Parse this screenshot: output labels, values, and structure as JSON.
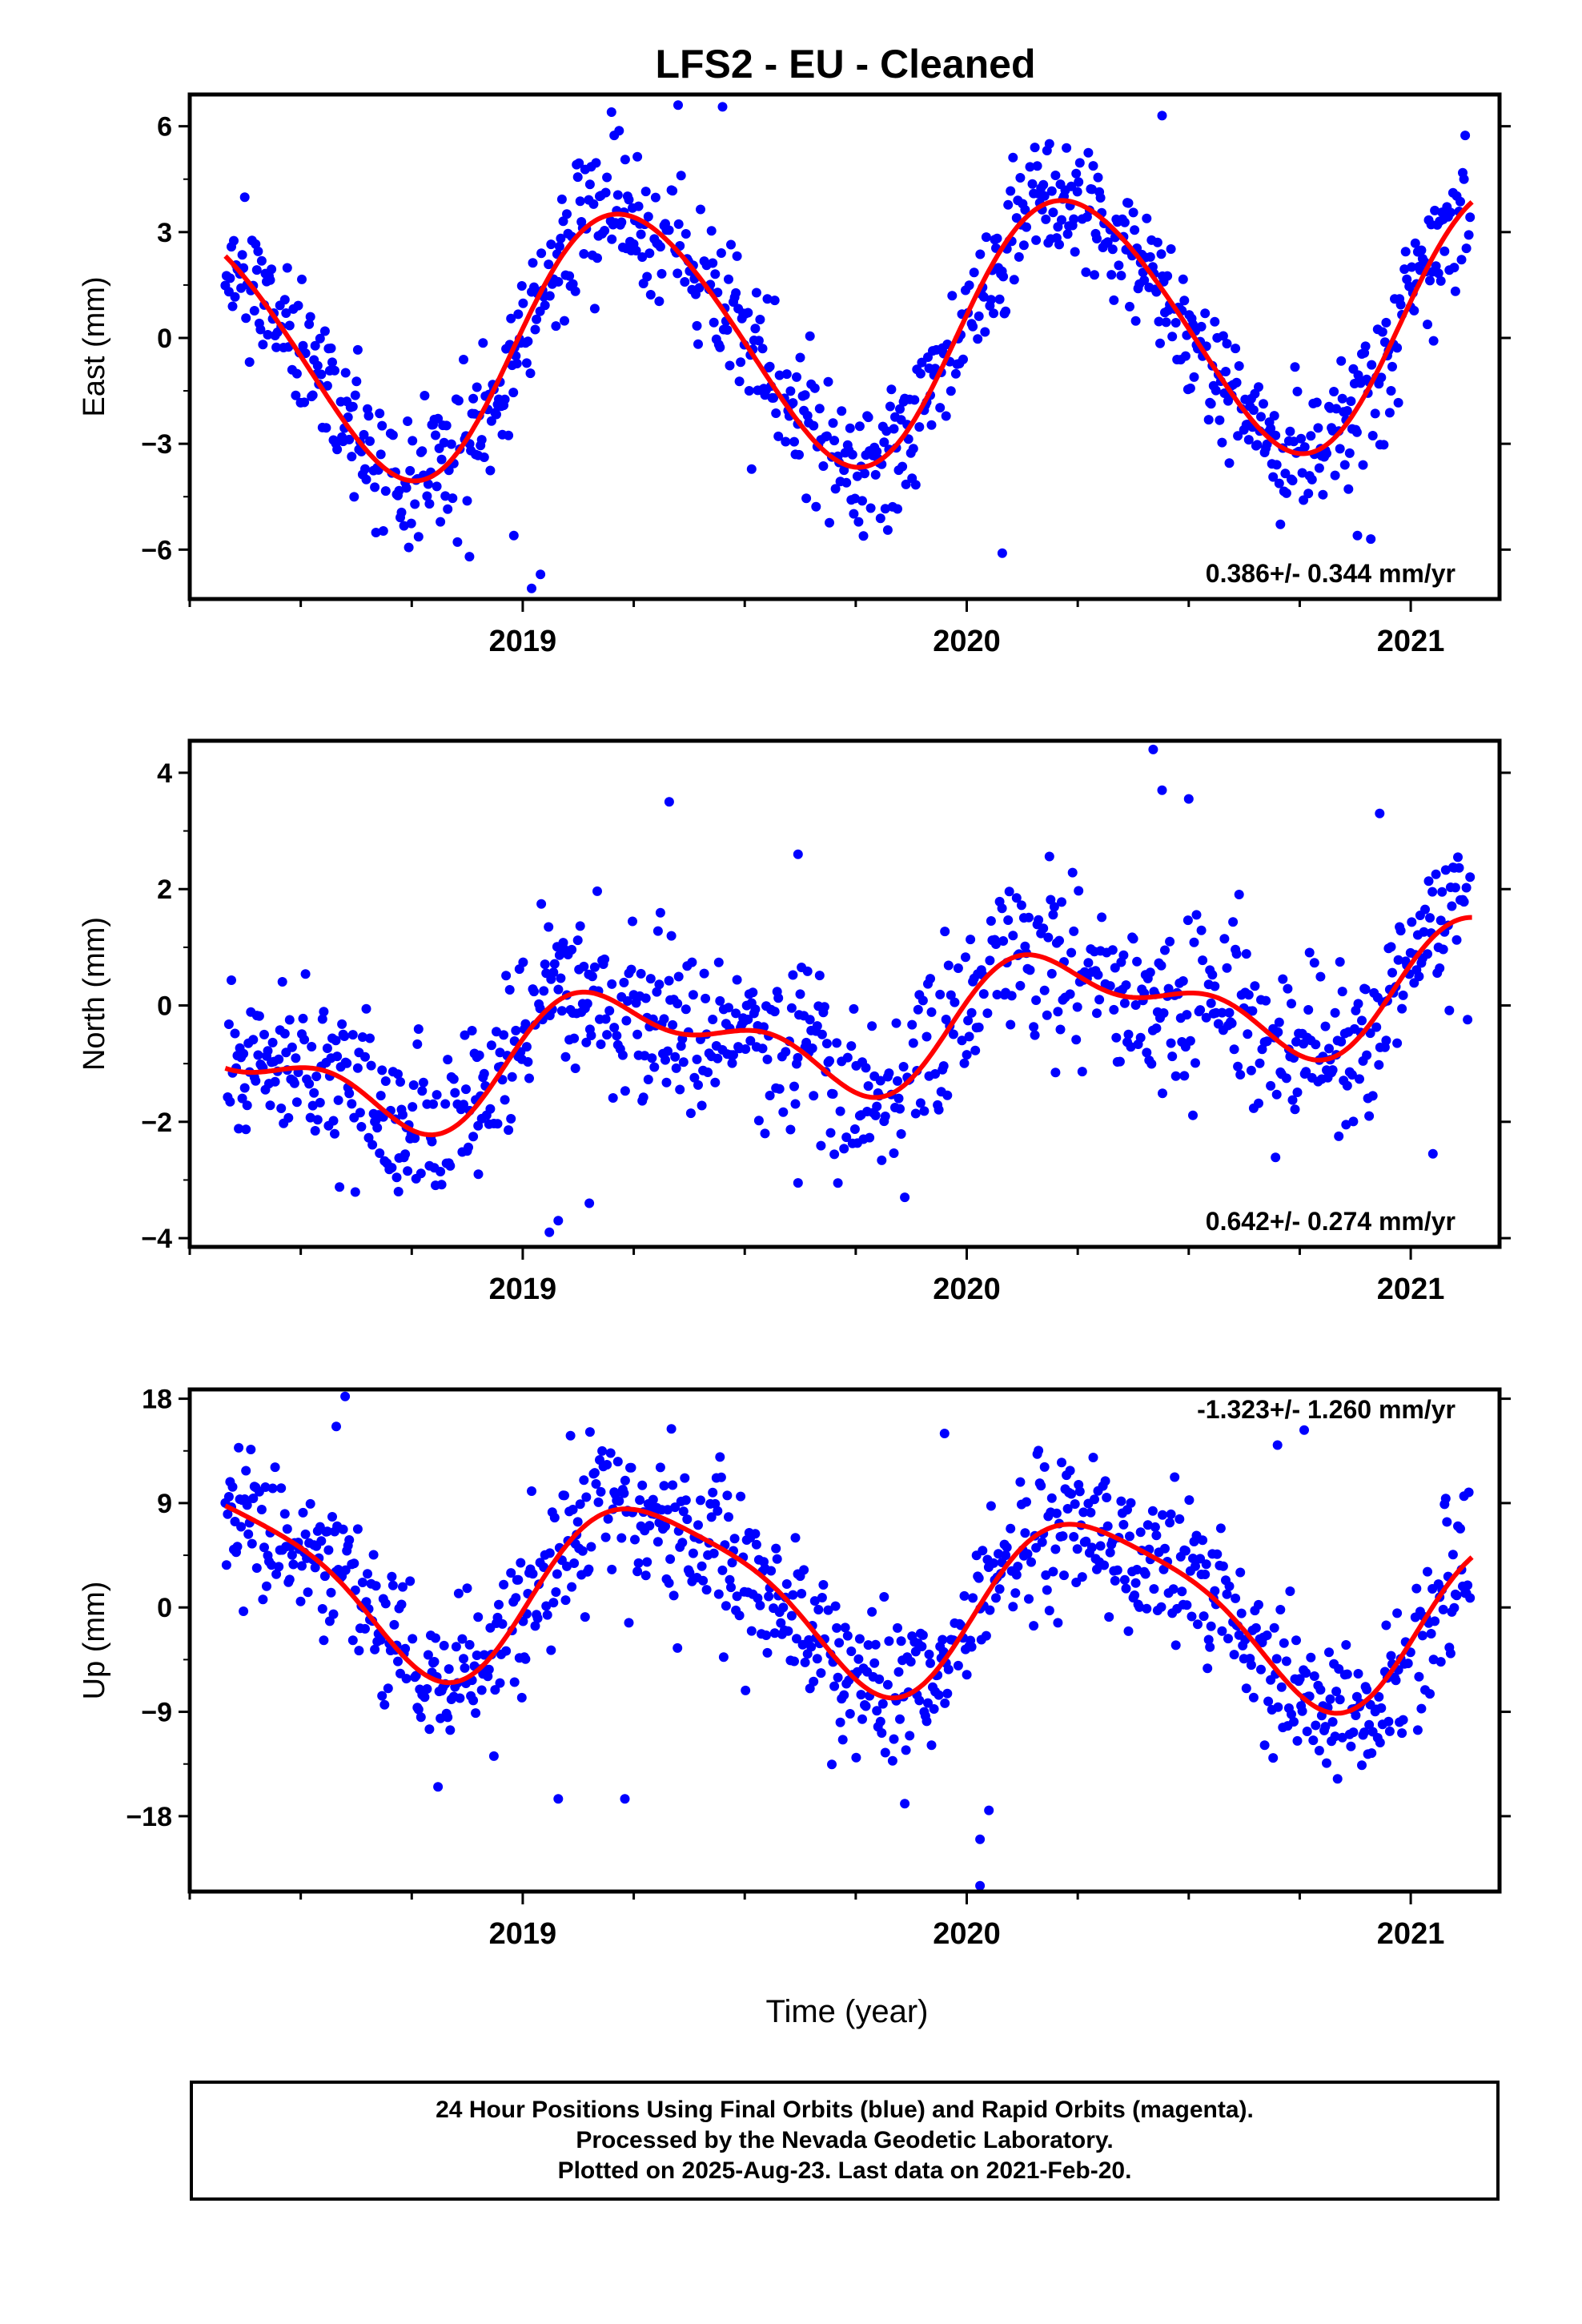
{
  "chart_data": {
    "type": "scatter",
    "title": "LFS2  - EU - Cleaned",
    "xlabel": "Time (year)",
    "xlim": [
      2018.25,
      2021.2
    ],
    "x_ticks": [
      2019,
      2020,
      2021
    ],
    "x_tick_labels": [
      "2019",
      "2020",
      "2021"
    ],
    "point_color": "#0000ff",
    "fit_color": "#ff0000",
    "panels": [
      {
        "name": "east",
        "ylabel": "East (mm)",
        "ylim": [
          -7.4,
          6.9
        ],
        "y_ticks": [
          6,
          3,
          0,
          -3,
          -6
        ],
        "y_tick_labels": [
          "6",
          "3",
          "0",
          "−3",
          "−6"
        ],
        "rate_label": "0.386+/- 0.344 mm/yr",
        "model": {
          "offset": 0.1,
          "rate": 0.386,
          "a1": 3.65,
          "p1": 0.08,
          "a2": 0.3,
          "p2": 0.5
        },
        "scatter_sd": 0.95,
        "seed": 11,
        "outliers": [
          [
            2019.02,
            -7.1
          ],
          [
            2019.04,
            -6.7
          ],
          [
            2018.98,
            -5.6
          ],
          [
            2019.2,
            6.4
          ],
          [
            2019.35,
            6.6
          ],
          [
            2019.45,
            6.55
          ],
          [
            2020.44,
            6.3
          ],
          [
            2020.88,
            -5.6
          ],
          [
            2020.91,
            -5.7
          ],
          [
            2020.08,
            -6.1
          ],
          [
            2018.88,
            -6.2
          ]
        ]
      },
      {
        "name": "north",
        "ylabel": "North (mm)",
        "ylim": [
          -4.15,
          4.55
        ],
        "y_ticks": [
          4,
          2,
          0,
          -2,
          -4
        ],
        "y_tick_labels": [
          "4",
          "2",
          "0",
          "−2",
          "−4"
        ],
        "rate_label": "0.642+/- 0.274 mm/yr",
        "model": {
          "offset": -0.45,
          "rate": 0.642,
          "a1": 0.85,
          "p1": 0.1,
          "a2": 0.45,
          "p2": 0.55
        },
        "scatter_sd": 0.7,
        "seed": 23,
        "outliers": [
          [
            2019.06,
            -3.9
          ],
          [
            2019.08,
            -3.7
          ],
          [
            2019.15,
            -3.4
          ],
          [
            2018.9,
            -2.9
          ],
          [
            2019.33,
            3.5
          ],
          [
            2019.62,
            2.6
          ],
          [
            2020.42,
            4.4
          ],
          [
            2020.44,
            3.7
          ],
          [
            2020.5,
            3.55
          ],
          [
            2020.93,
            3.3
          ],
          [
            2019.62,
            -3.05
          ],
          [
            2018.72,
            -3.2
          ],
          [
            2021.05,
            -2.55
          ]
        ]
      },
      {
        "name": "up",
        "ylabel": "Up (mm)",
        "ylim": [
          -24.5,
          18.8
        ],
        "y_ticks": [
          18,
          9,
          0,
          -9,
          -18
        ],
        "y_tick_labels": [
          "18",
          "9",
          "0",
          "−9",
          "−18"
        ],
        "rate_label": "-1.323+/- 1.260 mm/yr",
        "model": {
          "offset": 1.0,
          "rate": -1.323,
          "a1": 7.4,
          "p1": -0.33,
          "a2": 1.5,
          "p2": 0.1
        },
        "scatter_sd": 3.3,
        "seed": 37,
        "outliers": [
          [
            2018.6,
            18.2
          ],
          [
            2018.58,
            15.6
          ],
          [
            2020.03,
            -24.0
          ],
          [
            2020.03,
            -20.0
          ],
          [
            2020.05,
            -17.5
          ],
          [
            2020.76,
            15.3
          ],
          [
            2019.95,
            15.0
          ],
          [
            2019.08,
            -16.5
          ],
          [
            2019.23,
            -16.5
          ],
          [
            2020.7,
            14.0
          ]
        ]
      }
    ]
  },
  "footer": {
    "line1": "24 Hour Positions Using Final Orbits (blue) and Rapid Orbits (magenta).",
    "line2": "Processed by the Nevada Geodetic Laboratory.",
    "line3": "Plotted on 2025-Aug-23. Last data on 2021-Feb-20."
  }
}
